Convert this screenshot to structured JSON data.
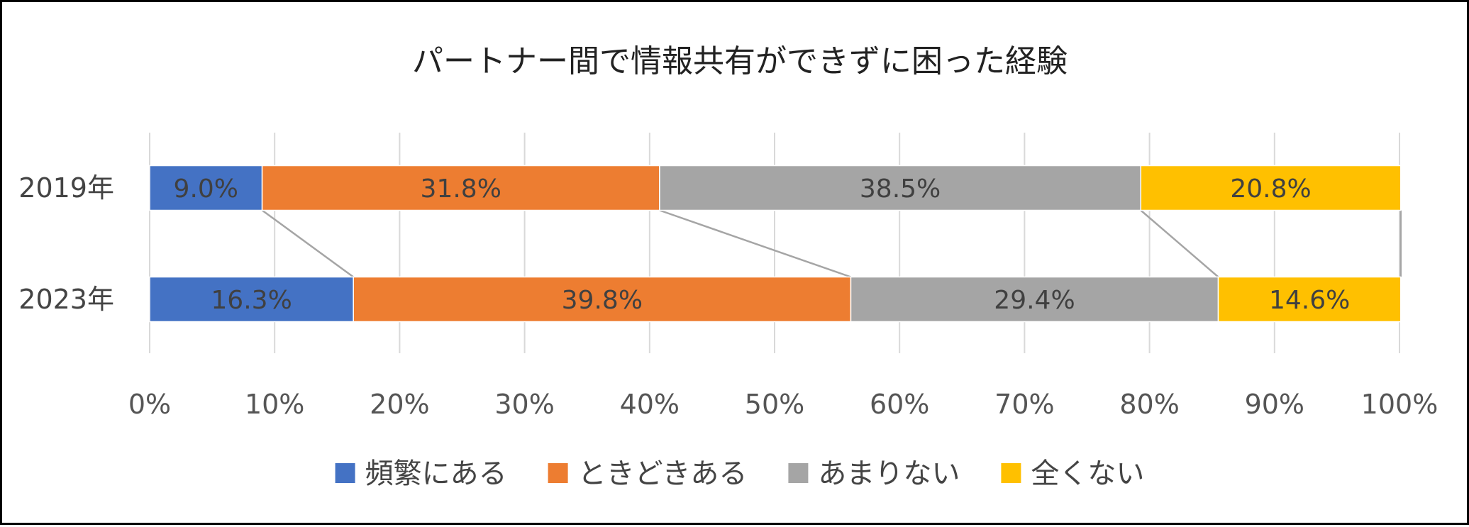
{
  "chart_data": {
    "type": "bar",
    "orientation": "horizontal",
    "stacked": "percent",
    "title": "パートナー間で情報共有ができずに困った経験",
    "categories": [
      "2019年",
      "2023年"
    ],
    "series": [
      {
        "name": "頻繁にある",
        "values": [
          9.0,
          16.3
        ],
        "labels": [
          "9.0%",
          "16.3%"
        ],
        "color": "#4472C4"
      },
      {
        "name": "ときどきある",
        "values": [
          31.8,
          39.8
        ],
        "labels": [
          "31.8%",
          "39.8%"
        ],
        "color": "#ED7D31"
      },
      {
        "name": "あまりない",
        "values": [
          38.5,
          29.4
        ],
        "labels": [
          "38.5%",
          "29.4%"
        ],
        "color": "#A5A5A5"
      },
      {
        "name": "全くない",
        "values": [
          20.8,
          14.6
        ],
        "labels": [
          "20.8%",
          "14.6%"
        ],
        "color": "#FFC000"
      }
    ],
    "xlim": [
      0,
      100
    ],
    "x_ticks": [
      "0%",
      "10%",
      "20%",
      "30%",
      "40%",
      "50%",
      "60%",
      "70%",
      "80%",
      "90%",
      "100%"
    ],
    "grid": "vertical",
    "series_lines": true,
    "series_line_color": "#A5A5A5",
    "grid_color": "#D9D9D9",
    "legend": "bottom"
  }
}
